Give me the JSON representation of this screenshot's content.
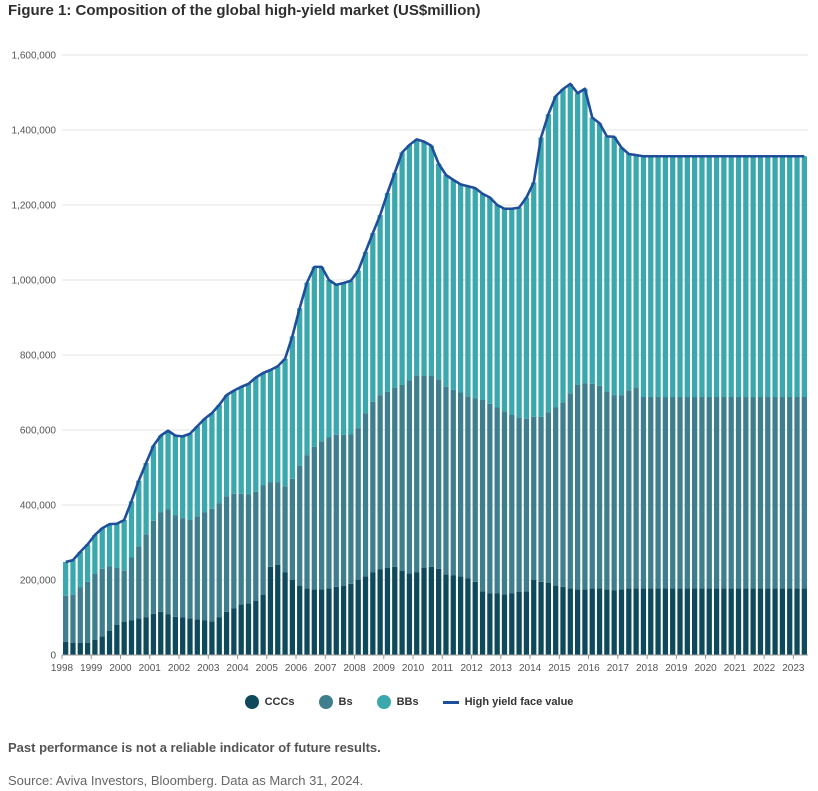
{
  "title": "Figure 1: Composition of the global high-yield market (US$million)",
  "disclaimer": "Past performance is not a reliable indicator of future results.",
  "source": "Source: Aviva Investors, Bloomberg. Data as March 31, 2024.",
  "colors": {
    "CCCs": "#0e4a5c",
    "Bs": "#3f7f8d",
    "BBs": "#3aa8ad",
    "High yield face value": "#1f4e9a",
    "gridline": "#e3e3e3",
    "axis": "#999999"
  },
  "chart_data": {
    "type": "bar",
    "stacked": true,
    "title": "Figure 1: Composition of the global high-yield market (US$million)",
    "xlabel": "",
    "ylabel": "",
    "ylim": [
      0,
      1600000
    ],
    "yticks": [
      0,
      200000,
      400000,
      600000,
      800000,
      1000000,
      1200000,
      1400000,
      1600000
    ],
    "ytick_labels": [
      "0",
      "200,000",
      "400,000",
      "600,000",
      "800,000",
      "1,000,000",
      "1,200,000",
      "1,400,000",
      "1,600,000"
    ],
    "xticks": [
      "1998",
      "1999",
      "2000",
      "2001",
      "2002",
      "2003",
      "2004",
      "2005",
      "2006",
      "2007",
      "2008",
      "2009",
      "2010",
      "2011",
      "2012",
      "2013",
      "2014",
      "2015",
      "2016",
      "2017",
      "2018",
      "2019",
      "2020",
      "2021",
      "2022",
      "2023"
    ],
    "grid": "horizontal",
    "legend_position": "bottom-center",
    "sampling": "quarterly, 1998 Q1 to 2023 Q2 (estimated from chart)",
    "series": [
      {
        "name": "CCCs",
        "kind": "bar",
        "values": [
          35000,
          33000,
          32000,
          33000,
          40000,
          50000,
          65000,
          80000,
          88000,
          92000,
          98000,
          100000,
          110000,
          115000,
          108000,
          102000,
          100000,
          98000,
          95000,
          92000,
          90000,
          100000,
          115000,
          125000,
          135000,
          138000,
          145000,
          160000,
          235000,
          240000,
          220000,
          200000,
          185000,
          178000,
          175000,
          175000,
          178000,
          182000,
          185000,
          190000,
          200000,
          210000,
          220000,
          228000,
          232000,
          235000,
          225000,
          218000,
          220000,
          232000,
          235000,
          230000,
          215000,
          212000,
          210000,
          205000,
          195000,
          170000,
          165000,
          165000,
          162000,
          165000,
          168000,
          170000,
          200000,
          195000,
          192000,
          185000,
          182000,
          178000,
          175000,
          175000,
          178000,
          178000,
          175000,
          172000,
          175000,
          178000,
          178000,
          178000,
          178000,
          178000,
          178000,
          178000,
          178000,
          178000,
          178000,
          178000,
          178000,
          178000,
          178000,
          178000,
          178000,
          178000,
          178000,
          178000,
          178000,
          178000,
          178000,
          178000,
          178000,
          178000
        ]
      },
      {
        "name": "Bs",
        "kind": "bar",
        "values": [
          123000,
          128000,
          148000,
          162000,
          176000,
          180000,
          172000,
          152000,
          137000,
          168000,
          192000,
          222000,
          248000,
          265000,
          280000,
          270000,
          265000,
          262000,
          275000,
          288000,
          300000,
          305000,
          308000,
          305000,
          295000,
          290000,
          290000,
          292000,
          225000,
          220000,
          230000,
          270000,
          320000,
          355000,
          380000,
          395000,
          402000,
          405000,
          402000,
          398000,
          405000,
          435000,
          455000,
          465000,
          470000,
          478000,
          495000,
          515000,
          525000,
          512000,
          510000,
          505000,
          500000,
          495000,
          490000,
          485000,
          490000,
          510000,
          505000,
          495000,
          488000,
          475000,
          465000,
          460000,
          435000,
          440000,
          455000,
          475000,
          492000,
          520000,
          545000,
          550000,
          545000,
          540000,
          528000,
          520000,
          518000,
          528000,
          535000,
          510000,
          510000,
          510000,
          510000,
          510000,
          510000,
          510000,
          510000,
          510000,
          510000,
          510000,
          510000,
          510000,
          510000,
          510000,
          510000,
          510000,
          510000,
          510000,
          510000,
          510000,
          510000,
          510000
        ]
      },
      {
        "name": "BBs",
        "kind": "bar",
        "values": [
          90000,
          92000,
          95000,
          100000,
          104000,
          108000,
          112000,
          118000,
          135000,
          150000,
          175000,
          190000,
          200000,
          205000,
          210000,
          213000,
          218000,
          230000,
          240000,
          250000,
          255000,
          262000,
          270000,
          275000,
          285000,
          295000,
          305000,
          300000,
          300000,
          310000,
          340000,
          380000,
          420000,
          460000,
          480000,
          465000,
          420000,
          400000,
          405000,
          410000,
          420000,
          430000,
          450000,
          480000,
          530000,
          573000,
          620000,
          627000,
          630000,
          625000,
          613000,
          575000,
          565000,
          560000,
          555000,
          560000,
          560000,
          550000,
          550000,
          540000,
          540000,
          550000,
          560000,
          590000,
          625000,
          745000,
          795000,
          830000,
          835000,
          825000,
          778000,
          785000,
          710000,
          700000,
          680000,
          690000,
          660000,
          630000,
          620000,
          642000,
          642000,
          642000,
          642000,
          642000,
          642000,
          642000,
          642000,
          642000,
          642000,
          642000,
          642000,
          642000,
          642000,
          642000,
          642000,
          642000,
          642000,
          642000,
          642000,
          642000,
          642000,
          642000
        ]
      },
      {
        "name": "High yield face value",
        "kind": "line",
        "values": [
          248000,
          253000,
          275000,
          295000,
          320000,
          338000,
          349000,
          350000,
          360000,
          410000,
          465000,
          512000,
          558000,
          585000,
          598000,
          585000,
          583000,
          590000,
          610000,
          630000,
          645000,
          667000,
          693000,
          705000,
          715000,
          723000,
          740000,
          752000,
          760000,
          770000,
          790000,
          850000,
          925000,
          993000,
          1035000,
          1035000,
          1000000,
          987000,
          992000,
          998000,
          1025000,
          1075000,
          1125000,
          1173000,
          1232000,
          1286000,
          1340000,
          1360000,
          1375000,
          1369000,
          1358000,
          1310000,
          1280000,
          1267000,
          1255000,
          1250000,
          1245000,
          1230000,
          1220000,
          1200000,
          1190000,
          1190000,
          1193000,
          1220000,
          1260000,
          1380000,
          1442000,
          1490000,
          1509000,
          1523000,
          1498000,
          1510000,
          1433000,
          1418000,
          1383000,
          1382000,
          1353000,
          1336000,
          1333000,
          1330000,
          1330000,
          1330000,
          1330000,
          1330000,
          1330000,
          1330000,
          1330000,
          1330000,
          1330000,
          1330000,
          1330000,
          1330000,
          1330000,
          1330000,
          1330000,
          1330000,
          1330000,
          1330000,
          1330000,
          1330000,
          1330000,
          1330000
        ]
      }
    ]
  },
  "legend": {
    "ccc": "CCCs",
    "b": "Bs",
    "bb": "BBs",
    "hy": "High yield face value"
  }
}
